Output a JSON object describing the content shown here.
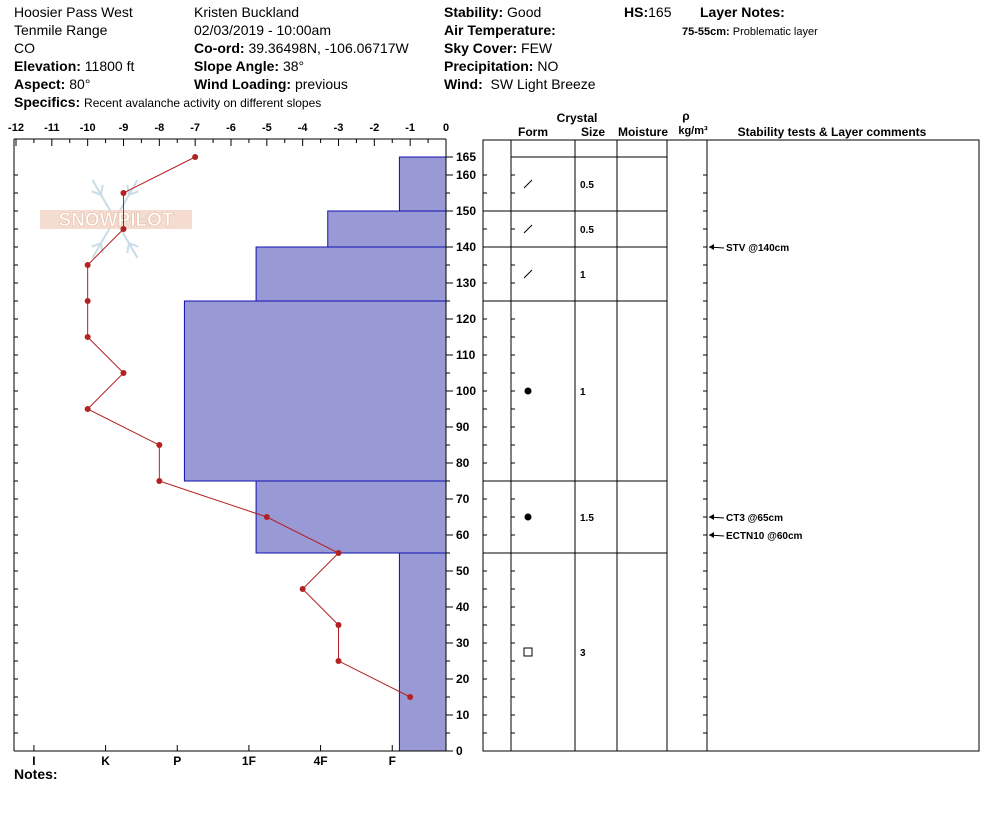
{
  "header": {
    "location": "Hoosier Pass West",
    "range": "Tenmile Range",
    "state": "CO",
    "elevation_label": "Elevation:",
    "elevation_value": "11800 ft",
    "aspect_label": "Aspect:",
    "aspect_value": "80°",
    "specifics_label": "Specifics:",
    "specifics_value": "Recent avalanche activity on different slopes",
    "observer": "Kristen Buckland",
    "datetime": "02/03/2019 - 10:00am",
    "coord_label": "Co-ord:",
    "coord_value": "39.36498N, -106.06717W",
    "slope_label": "Slope Angle:",
    "slope_value": "38°",
    "wind_loading_label": "Wind Loading:",
    "wind_loading_value": "previous",
    "stability_label": "Stability:",
    "stability_value": "Good",
    "air_temp_label": "Air Temperature:",
    "sky_label": "Sky Cover:",
    "sky_value": "FEW",
    "precip_label": "Precipitation:",
    "precip_value": "NO",
    "wind_label": "Wind:",
    "wind_value": "SW Light Breeze",
    "hs_label": "HS:",
    "hs_value": "165",
    "layer_notes_label": "Layer Notes:",
    "layer_notes_range": "75-55cm:",
    "layer_notes_value": "Problematic layer"
  },
  "notes_label": "Notes:",
  "watermark": "SNOWPILOT",
  "columns": {
    "crystal": "Crystal",
    "form": "Form",
    "size": "Size",
    "moisture": "Moisture",
    "rho": "ρ",
    "density_unit": "kg/m³",
    "stability": "Stability tests & Layer comments"
  },
  "colors": {
    "hardness_fill": "#9999d6",
    "hardness_stroke": "#1010b0",
    "temp_line": "#b22222"
  },
  "chart_data": {
    "type": "snow-profile",
    "temp_axis": {
      "min": -12,
      "max": 0,
      "ticks": [
        "-12",
        "-11",
        "-10",
        "-9",
        "-8",
        "-7",
        "-6",
        "-5",
        "-4",
        "-3",
        "-2",
        "-1",
        "0"
      ]
    },
    "height_axis": {
      "min": 0,
      "max": 165,
      "ticks": [
        "0",
        "10",
        "20",
        "30",
        "40",
        "50",
        "60",
        "70",
        "80",
        "90",
        "100",
        "110",
        "120",
        "130",
        "140",
        "150",
        "160",
        "165"
      ]
    },
    "hardness_axis": {
      "labels": [
        "I",
        "K",
        "P",
        "1F",
        "4F",
        "F"
      ],
      "positions": [
        -11.5,
        -9.5,
        -7.5,
        -5.5,
        -3.5,
        -1.5
      ]
    },
    "temperature_profile": [
      {
        "height": 165,
        "temp": -7
      },
      {
        "height": 155,
        "temp": -9
      },
      {
        "height": 145,
        "temp": -9
      },
      {
        "height": 135,
        "temp": -10
      },
      {
        "height": 125,
        "temp": -10
      },
      {
        "height": 115,
        "temp": -10
      },
      {
        "height": 105,
        "temp": -9
      },
      {
        "height": 95,
        "temp": -10
      },
      {
        "height": 85,
        "temp": -8
      },
      {
        "height": 75,
        "temp": -8
      },
      {
        "height": 65,
        "temp": -5
      },
      {
        "height": 55,
        "temp": -3
      },
      {
        "height": 45,
        "temp": -4
      },
      {
        "height": 35,
        "temp": -3
      },
      {
        "height": 25,
        "temp": -3
      },
      {
        "height": 15,
        "temp": -1
      }
    ],
    "hardness_layers": [
      {
        "top": 165,
        "bottom": 150,
        "extent": -1.3
      },
      {
        "top": 150,
        "bottom": 140,
        "extent": -3.3
      },
      {
        "top": 140,
        "bottom": 125,
        "extent": -5.3
      },
      {
        "top": 125,
        "bottom": 75,
        "extent": -7.3
      },
      {
        "top": 75,
        "bottom": 55,
        "extent": -5.3
      },
      {
        "top": 55,
        "bottom": 0,
        "extent": -1.3
      }
    ],
    "layers": [
      {
        "top": 165,
        "bottom": 150,
        "form": "slash",
        "size": "0.5"
      },
      {
        "top": 150,
        "bottom": 140,
        "form": "slash",
        "size": "0.5"
      },
      {
        "top": 140,
        "bottom": 125,
        "form": "slash",
        "size": "1"
      },
      {
        "top": 125,
        "bottom": 75,
        "form": "dot",
        "size": "1"
      },
      {
        "top": 75,
        "bottom": 55,
        "form": "dot",
        "size": "1.5"
      },
      {
        "top": 55,
        "bottom": 0,
        "form": "square",
        "size": "3"
      }
    ],
    "stability_tests": [
      {
        "height": 140,
        "label": "STV @140cm"
      },
      {
        "height": 65,
        "label": "CT3 @65cm"
      },
      {
        "height": 60,
        "label": "ECTN10 @60cm"
      }
    ]
  }
}
